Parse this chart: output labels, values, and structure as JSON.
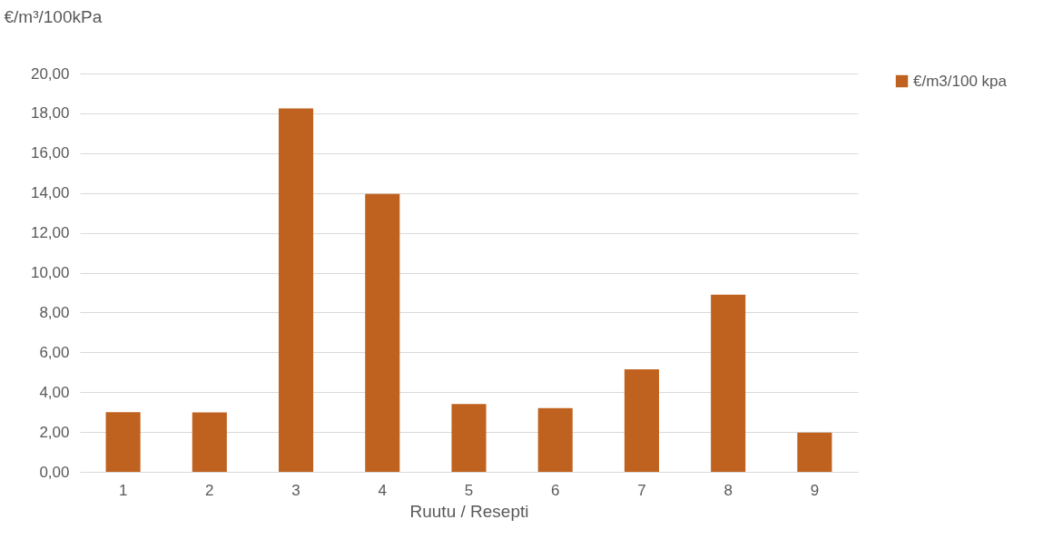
{
  "chart_data": {
    "type": "bar",
    "ylabel": "€/m³/100kPa",
    "xlabel": "Ruutu / Resepti",
    "categories": [
      "1",
      "2",
      "3",
      "4",
      "5",
      "6",
      "7",
      "8",
      "9"
    ],
    "series": [
      {
        "name": "€/m3/100 kpa",
        "color": "#c0621f",
        "values": [
          3.0,
          2.98,
          18.25,
          13.95,
          3.4,
          3.2,
          5.15,
          8.9,
          1.97
        ]
      }
    ],
    "ylim": [
      0,
      20
    ],
    "yticks": [
      {
        "value": 0,
        "label": "0,00"
      },
      {
        "value": 2,
        "label": "2,00"
      },
      {
        "value": 4,
        "label": "4,00"
      },
      {
        "value": 6,
        "label": "6,00"
      },
      {
        "value": 8,
        "label": "8,00"
      },
      {
        "value": 10,
        "label": "10,00"
      },
      {
        "value": 12,
        "label": "12,00"
      },
      {
        "value": 14,
        "label": "14,00"
      },
      {
        "value": 16,
        "label": "16,00"
      },
      {
        "value": 18,
        "label": "18,00"
      },
      {
        "value": 20,
        "label": "20,00"
      }
    ],
    "grid": "y",
    "legend": "right"
  }
}
